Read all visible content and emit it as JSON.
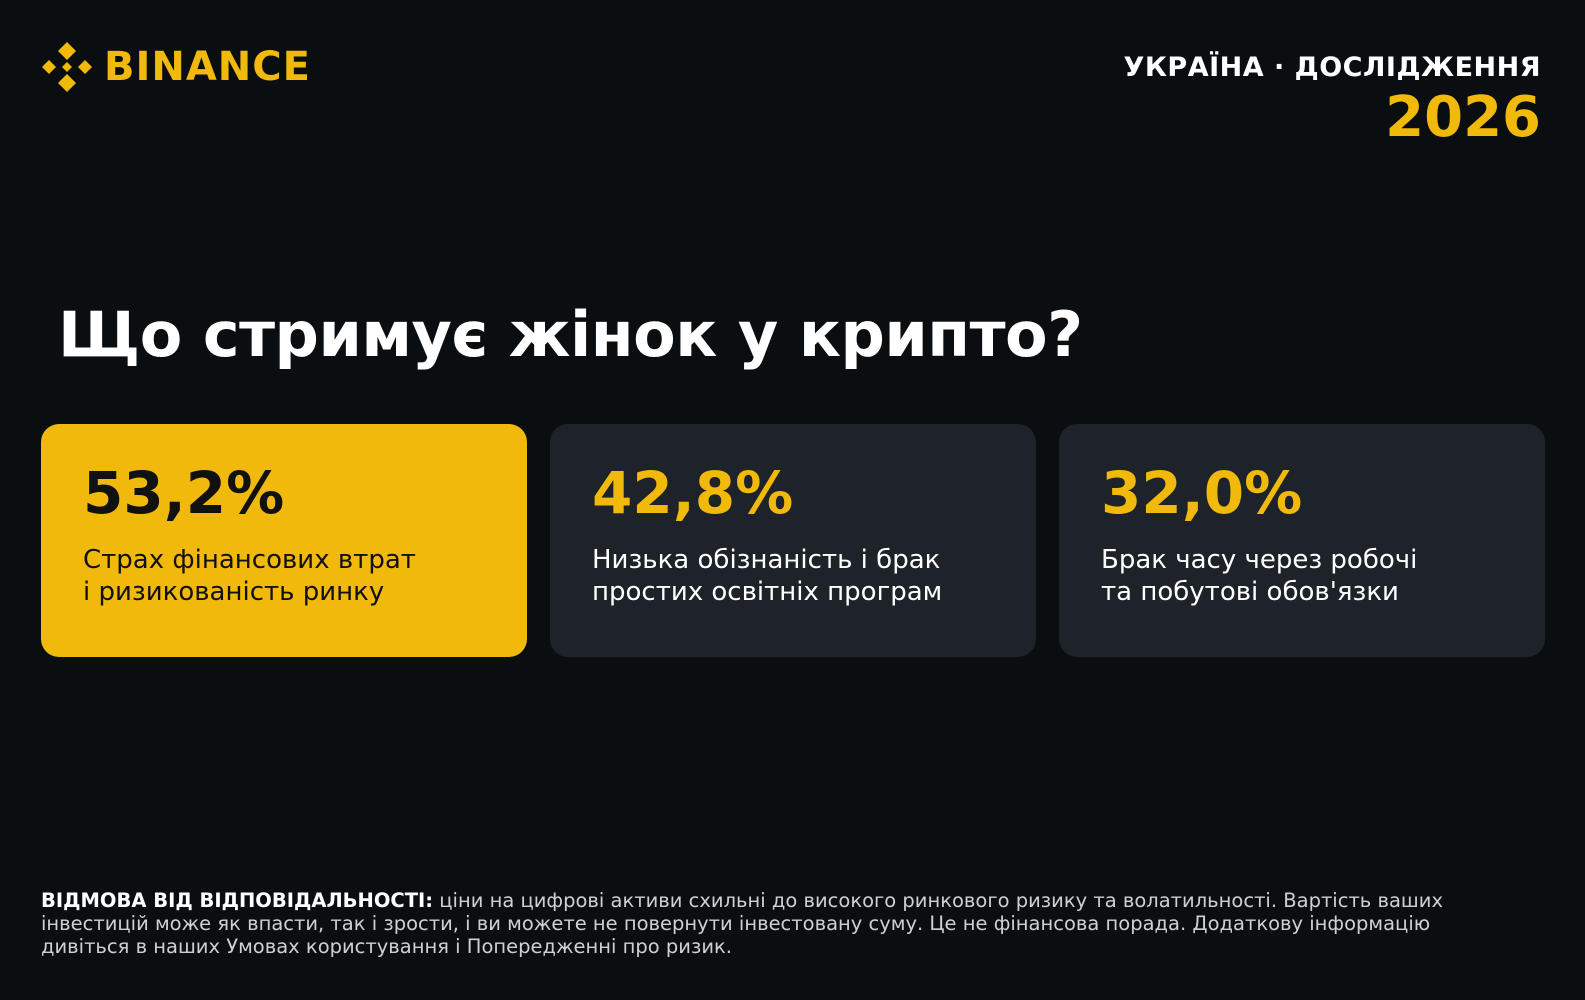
{
  "header": {
    "brand": "BINANCE",
    "label": "УКРАЇНА · ДОСЛІДЖЕННЯ",
    "year": "2026"
  },
  "title": "Що стримує жінок у крипто?",
  "cards": [
    {
      "value": "53,2%",
      "lines": [
        "Страх фінансових втрат",
        "і ризикованість ринку"
      ]
    },
    {
      "value": "42,8%",
      "lines": [
        "Низька обізнаність і брак",
        "простих освітніх програм"
      ]
    },
    {
      "value": "32,0%",
      "lines": [
        "Брак часу через робочі",
        "та побутові обов'язки"
      ]
    }
  ],
  "disclaimer": {
    "label": "ВІДМОВА ВІД ВІДПОВІДАЛЬНОСТІ:",
    "text": "ціни на цифрові активи схильні до високого ринкового ризику та волатильності. Вартість ваших інвестицій може як впасти, так і зрости, і ви можете не повернути інвестовану суму. Це не фінансова порада. Додаткову інформацію дивіться в наших Умовах користування і Попередженні про ризик."
  }
}
